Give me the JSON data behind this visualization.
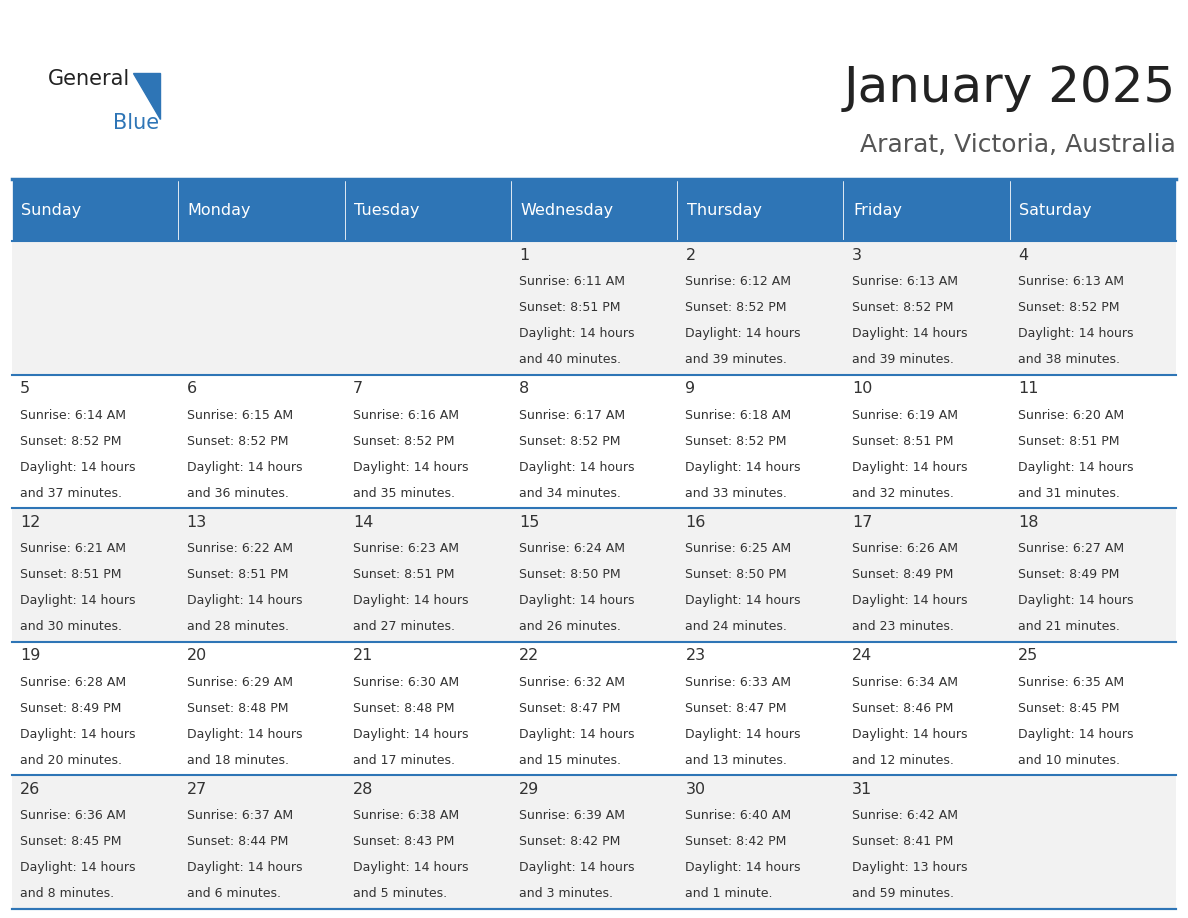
{
  "title": "January 2025",
  "subtitle": "Ararat, Victoria, Australia",
  "header_bg": "#2E75B6",
  "header_text_color": "#FFFFFF",
  "cell_bg_light": "#F2F2F2",
  "cell_bg_white": "#FFFFFF",
  "day_names": [
    "Sunday",
    "Monday",
    "Tuesday",
    "Wednesday",
    "Thursday",
    "Friday",
    "Saturday"
  ],
  "grid_line_color": "#2E75B6",
  "text_color": "#333333",
  "days": [
    {
      "date": 1,
      "col": 3,
      "row": 0,
      "sunrise": "6:11 AM",
      "sunset": "8:51 PM",
      "daylight_hours": 14,
      "daylight_minutes": 40
    },
    {
      "date": 2,
      "col": 4,
      "row": 0,
      "sunrise": "6:12 AM",
      "sunset": "8:52 PM",
      "daylight_hours": 14,
      "daylight_minutes": 39
    },
    {
      "date": 3,
      "col": 5,
      "row": 0,
      "sunrise": "6:13 AM",
      "sunset": "8:52 PM",
      "daylight_hours": 14,
      "daylight_minutes": 39
    },
    {
      "date": 4,
      "col": 6,
      "row": 0,
      "sunrise": "6:13 AM",
      "sunset": "8:52 PM",
      "daylight_hours": 14,
      "daylight_minutes": 38
    },
    {
      "date": 5,
      "col": 0,
      "row": 1,
      "sunrise": "6:14 AM",
      "sunset": "8:52 PM",
      "daylight_hours": 14,
      "daylight_minutes": 37
    },
    {
      "date": 6,
      "col": 1,
      "row": 1,
      "sunrise": "6:15 AM",
      "sunset": "8:52 PM",
      "daylight_hours": 14,
      "daylight_minutes": 36
    },
    {
      "date": 7,
      "col": 2,
      "row": 1,
      "sunrise": "6:16 AM",
      "sunset": "8:52 PM",
      "daylight_hours": 14,
      "daylight_minutes": 35
    },
    {
      "date": 8,
      "col": 3,
      "row": 1,
      "sunrise": "6:17 AM",
      "sunset": "8:52 PM",
      "daylight_hours": 14,
      "daylight_minutes": 34
    },
    {
      "date": 9,
      "col": 4,
      "row": 1,
      "sunrise": "6:18 AM",
      "sunset": "8:52 PM",
      "daylight_hours": 14,
      "daylight_minutes": 33
    },
    {
      "date": 10,
      "col": 5,
      "row": 1,
      "sunrise": "6:19 AM",
      "sunset": "8:51 PM",
      "daylight_hours": 14,
      "daylight_minutes": 32
    },
    {
      "date": 11,
      "col": 6,
      "row": 1,
      "sunrise": "6:20 AM",
      "sunset": "8:51 PM",
      "daylight_hours": 14,
      "daylight_minutes": 31
    },
    {
      "date": 12,
      "col": 0,
      "row": 2,
      "sunrise": "6:21 AM",
      "sunset": "8:51 PM",
      "daylight_hours": 14,
      "daylight_minutes": 30
    },
    {
      "date": 13,
      "col": 1,
      "row": 2,
      "sunrise": "6:22 AM",
      "sunset": "8:51 PM",
      "daylight_hours": 14,
      "daylight_minutes": 28
    },
    {
      "date": 14,
      "col": 2,
      "row": 2,
      "sunrise": "6:23 AM",
      "sunset": "8:51 PM",
      "daylight_hours": 14,
      "daylight_minutes": 27
    },
    {
      "date": 15,
      "col": 3,
      "row": 2,
      "sunrise": "6:24 AM",
      "sunset": "8:50 PM",
      "daylight_hours": 14,
      "daylight_minutes": 26
    },
    {
      "date": 16,
      "col": 4,
      "row": 2,
      "sunrise": "6:25 AM",
      "sunset": "8:50 PM",
      "daylight_hours": 14,
      "daylight_minutes": 24
    },
    {
      "date": 17,
      "col": 5,
      "row": 2,
      "sunrise": "6:26 AM",
      "sunset": "8:49 PM",
      "daylight_hours": 14,
      "daylight_minutes": 23
    },
    {
      "date": 18,
      "col": 6,
      "row": 2,
      "sunrise": "6:27 AM",
      "sunset": "8:49 PM",
      "daylight_hours": 14,
      "daylight_minutes": 21
    },
    {
      "date": 19,
      "col": 0,
      "row": 3,
      "sunrise": "6:28 AM",
      "sunset": "8:49 PM",
      "daylight_hours": 14,
      "daylight_minutes": 20
    },
    {
      "date": 20,
      "col": 1,
      "row": 3,
      "sunrise": "6:29 AM",
      "sunset": "8:48 PM",
      "daylight_hours": 14,
      "daylight_minutes": 18
    },
    {
      "date": 21,
      "col": 2,
      "row": 3,
      "sunrise": "6:30 AM",
      "sunset": "8:48 PM",
      "daylight_hours": 14,
      "daylight_minutes": 17
    },
    {
      "date": 22,
      "col": 3,
      "row": 3,
      "sunrise": "6:32 AM",
      "sunset": "8:47 PM",
      "daylight_hours": 14,
      "daylight_minutes": 15
    },
    {
      "date": 23,
      "col": 4,
      "row": 3,
      "sunrise": "6:33 AM",
      "sunset": "8:47 PM",
      "daylight_hours": 14,
      "daylight_minutes": 13
    },
    {
      "date": 24,
      "col": 5,
      "row": 3,
      "sunrise": "6:34 AM",
      "sunset": "8:46 PM",
      "daylight_hours": 14,
      "daylight_minutes": 12
    },
    {
      "date": 25,
      "col": 6,
      "row": 3,
      "sunrise": "6:35 AM",
      "sunset": "8:45 PM",
      "daylight_hours": 14,
      "daylight_minutes": 10
    },
    {
      "date": 26,
      "col": 0,
      "row": 4,
      "sunrise": "6:36 AM",
      "sunset": "8:45 PM",
      "daylight_hours": 14,
      "daylight_minutes": 8
    },
    {
      "date": 27,
      "col": 1,
      "row": 4,
      "sunrise": "6:37 AM",
      "sunset": "8:44 PM",
      "daylight_hours": 14,
      "daylight_minutes": 6
    },
    {
      "date": 28,
      "col": 2,
      "row": 4,
      "sunrise": "6:38 AM",
      "sunset": "8:43 PM",
      "daylight_hours": 14,
      "daylight_minutes": 5
    },
    {
      "date": 29,
      "col": 3,
      "row": 4,
      "sunrise": "6:39 AM",
      "sunset": "8:42 PM",
      "daylight_hours": 14,
      "daylight_minutes": 3
    },
    {
      "date": 30,
      "col": 4,
      "row": 4,
      "sunrise": "6:40 AM",
      "sunset": "8:42 PM",
      "daylight_hours": 14,
      "daylight_minutes": 1
    },
    {
      "date": 31,
      "col": 5,
      "row": 4,
      "sunrise": "6:42 AM",
      "sunset": "8:41 PM",
      "daylight_hours": 13,
      "daylight_minutes": 59
    }
  ]
}
